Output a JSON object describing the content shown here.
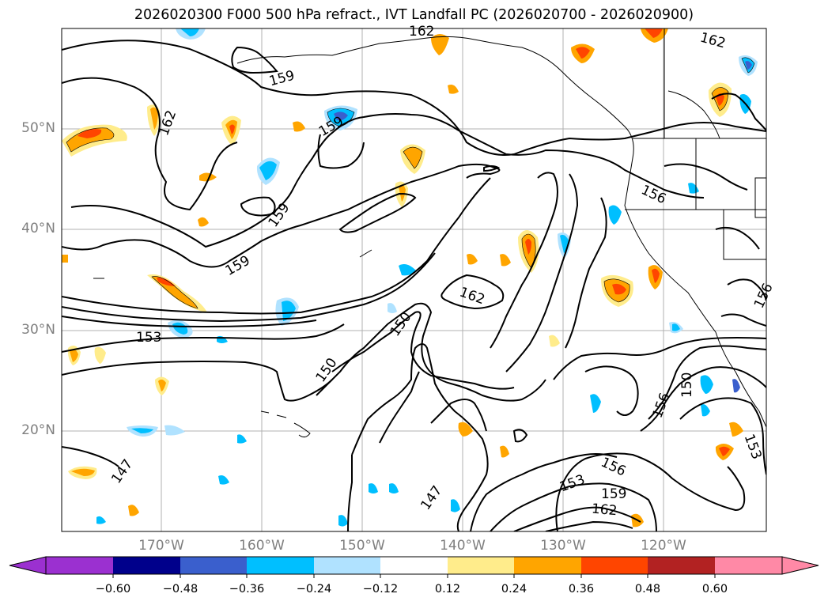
{
  "title": "2026020300 F000 500 hPa refract., IVT Landfall PC (2026020700 - 2026020900)",
  "lat_labels": [
    "50°N",
    "40°N",
    "30°N",
    "20°N"
  ],
  "lon_labels": [
    "170°W",
    "160°W",
    "150°W",
    "140°W",
    "130°W",
    "120°W"
  ],
  "contour_labels": [
    "159",
    "162",
    "159",
    "162",
    "159",
    "159",
    "162",
    "162",
    "156",
    "156",
    "150",
    "153",
    "150",
    "156",
    "150",
    "153",
    "147",
    "147",
    "153",
    "156",
    "159",
    "162"
  ],
  "colorbar": {
    "ticks": [
      "−0.60",
      "−0.48",
      "−0.36",
      "−0.24",
      "−0.12",
      "0.12",
      "0.24",
      "0.36",
      "0.48",
      "0.60"
    ],
    "colors": [
      "#9b30d0",
      "#00008b",
      "#3a5fcd",
      "#00bfff",
      "#b0e2ff",
      "#ffffff",
      "#ffec8b",
      "#ffa500",
      "#ff4500",
      "#b22222",
      "#ff89a6"
    ]
  },
  "colors": {
    "grid": "#b0b0b0",
    "contour": "#000000",
    "label": "#7f7f7f"
  }
}
